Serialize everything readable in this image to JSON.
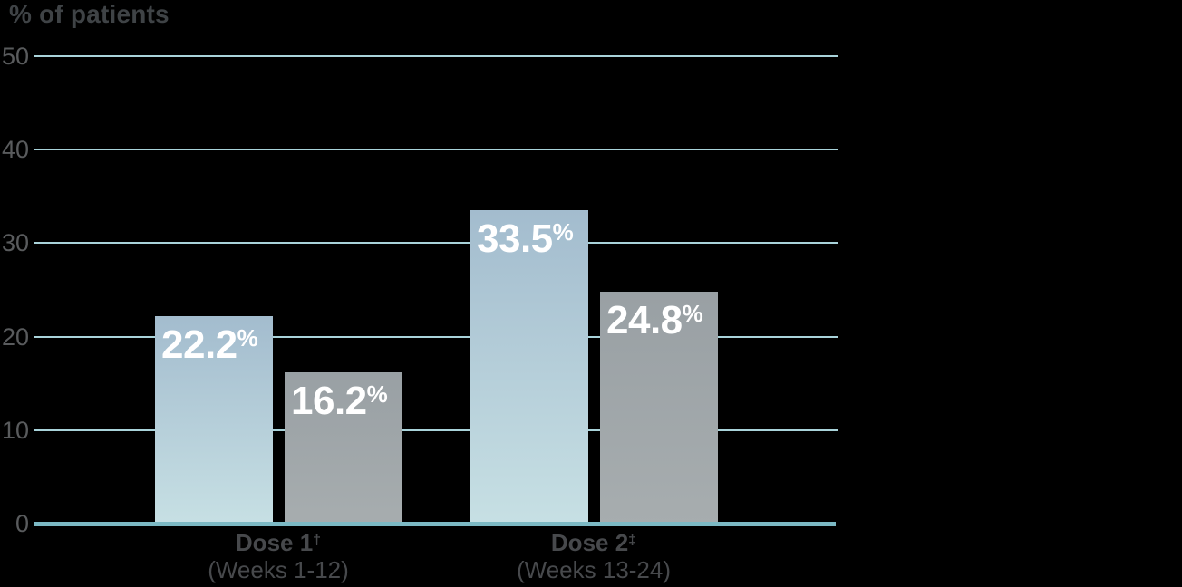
{
  "chart_data": {
    "type": "bar",
    "title": "% of patients",
    "categories": [
      {
        "label": "Dose 1",
        "superscript": "†",
        "sublabel": "(Weeks 1-12)"
      },
      {
        "label": "Dose 2",
        "superscript": "‡",
        "sublabel": "(Weeks 13-24)"
      }
    ],
    "series": [
      {
        "name": "blue-bars",
        "values": [
          22.2,
          33.5
        ],
        "labels": [
          "22.2",
          "33.5"
        ],
        "color_top": "#a3bcce",
        "color_bottom": "#c7e0e4"
      },
      {
        "name": "gray-bars",
        "values": [
          16.2,
          24.8
        ],
        "labels": [
          "16.2",
          "24.8"
        ],
        "color_top": "#99a0a4",
        "color_bottom": "#a7adaf"
      }
    ],
    "percent_sign": "%",
    "yticks": [
      50,
      40,
      30,
      20,
      10,
      0
    ],
    "ylim": [
      0,
      50
    ],
    "grid": true,
    "legend": false,
    "colors": {
      "background": "#000000",
      "gridline": "#a9d3da",
      "baseline": "#7cb9c4",
      "title_text": "#3f4346",
      "tick_text": "#595b5d",
      "xlabel_text": "#47494c",
      "value_label_text": "#ffffff"
    }
  }
}
